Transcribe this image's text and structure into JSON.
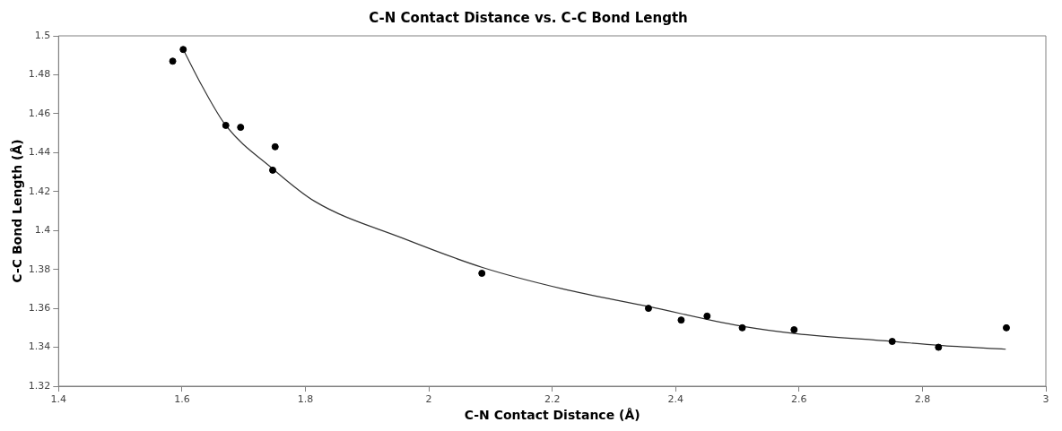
{
  "chart_data": {
    "type": "scatter",
    "title": "C-N Contact Distance vs. C-C Bond Length",
    "xlabel": "C-N Contact Distance (Å)",
    "ylabel": "C-C Bond Length (Å)",
    "xlim": [
      1.4,
      3
    ],
    "xticks": [
      1.4,
      1.6,
      1.8,
      2,
      2.2,
      2.4,
      2.6,
      2.8,
      3
    ],
    "ylim": [
      1.32,
      1.5
    ],
    "yticks": [
      1.32,
      1.34,
      1.36,
      1.38,
      1.4,
      1.42,
      1.44,
      1.46,
      1.48,
      1.5
    ],
    "grid": false,
    "legend": false,
    "marker": "circle",
    "series": [
      {
        "color": "#000000",
        "x": [
          1.585,
          1.602,
          1.671,
          1.695,
          1.747,
          1.751,
          2.086,
          2.356,
          2.409,
          2.451,
          2.508,
          2.592,
          2.751,
          2.826,
          2.936
        ],
        "values": [
          1.487,
          1.493,
          1.454,
          1.453,
          1.431,
          1.443,
          1.378,
          1.36,
          1.354,
          1.356,
          1.35,
          1.349,
          1.343,
          1.34,
          1.35
        ]
      },
      {
        "type": "line",
        "color": "#333333",
        "line_style": "solid",
        "marker": "none",
        "x": [
          1.602,
          1.633,
          1.671,
          1.746,
          1.815,
          1.958,
          2.087,
          2.217,
          2.355,
          2.504,
          2.595,
          2.752,
          2.826,
          2.935
        ],
        "values": [
          1.493,
          1.474,
          1.454,
          1.432,
          1.415,
          1.396,
          1.381,
          1.37,
          1.361,
          1.351,
          1.347,
          1.343,
          1.341,
          1.339
        ]
      }
    ]
  }
}
